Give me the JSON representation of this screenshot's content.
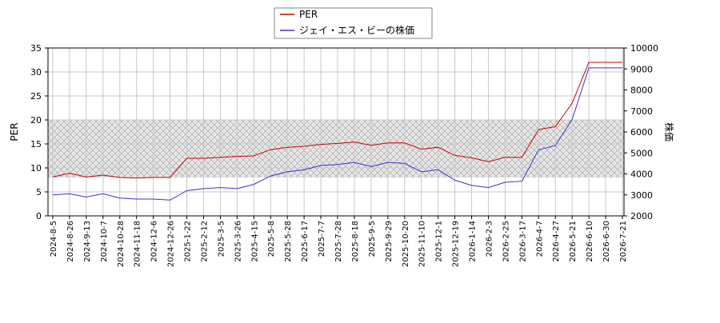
{
  "chart_data": {
    "type": "line",
    "legend": {
      "placement": "top-center",
      "entries": [
        {
          "label": "PER",
          "color": "#cc0000"
        },
        {
          "label": "ジェイ・エス・ビーの株価",
          "color": "#3333cc"
        }
      ]
    },
    "ylabel_left": "PER",
    "ylabel_right": "株価",
    "ylim_left": [
      0,
      35
    ],
    "ylim_right": [
      2000,
      10000
    ],
    "yticks_left": [
      "0",
      "5",
      "10",
      "15",
      "20",
      "25",
      "30",
      "35"
    ],
    "yticks_right": [
      "2000",
      "3000",
      "4000",
      "5000",
      "6000",
      "7000",
      "8000",
      "9000",
      "10000"
    ],
    "shaded_band_left": [
      8,
      20
    ],
    "grid": true,
    "x": [
      "2024-8-5",
      "2024-8-26",
      "2024-9-13",
      "2024-10-7",
      "2024-10-28",
      "2024-11-18",
      "2024-12-6",
      "2024-12-26",
      "2025-1-22",
      "2025-2-12",
      "2025-3-5",
      "2025-3-26",
      "2025-4-15",
      "2025-5-8",
      "2025-5-28",
      "2025-6-17",
      "2025-7-7",
      "2025-7-28",
      "2025-8-18",
      "2025-9-5",
      "2025-9-29",
      "2025-10-20",
      "2025-11-10",
      "2025-12-1",
      "2025-12-19",
      "2026-1-14",
      "2026-2-3",
      "2026-2-25",
      "2026-3-17",
      "2026-4-7",
      "2026-4-27",
      "2026-5-21",
      "2026-6-10",
      "2026-6-30",
      "2026-7-21"
    ],
    "series": [
      {
        "name": "PER",
        "axis": "left",
        "color": "#cc0000",
        "values": [
          8.1,
          8.9,
          8.1,
          8.5,
          8.0,
          7.9,
          8.0,
          8.0,
          12.0,
          12.0,
          12.2,
          12.4,
          12.5,
          13.8,
          14.3,
          14.5,
          14.9,
          15.1,
          15.4,
          14.7,
          15.2,
          15.2,
          13.9,
          14.3,
          12.6,
          12.1,
          11.3,
          12.2,
          12.2,
          18.0,
          18.6,
          23.5,
          32.0,
          32.0,
          32.0
        ]
      },
      {
        "name": "ジェイ・エス・ビーの株価",
        "axis": "right",
        "color": "#3333cc",
        "values": [
          3000,
          3050,
          2900,
          3050,
          2850,
          2800,
          2800,
          2750,
          3200,
          3300,
          3350,
          3300,
          3500,
          3900,
          4100,
          4200,
          4400,
          4450,
          4550,
          4350,
          4550,
          4500,
          4100,
          4200,
          3700,
          3450,
          3350,
          3600,
          3650,
          5150,
          5350,
          6600,
          9050,
          9050,
          9050
        ]
      }
    ]
  }
}
